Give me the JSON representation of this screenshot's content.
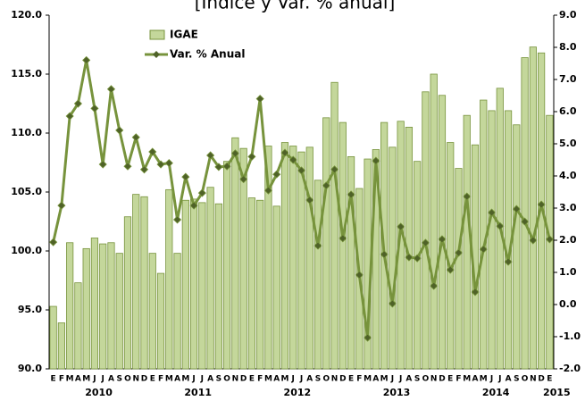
{
  "chart_data": {
    "type": "bar_line",
    "title": "[Índice y Var. % anual]",
    "categories": [
      "E",
      "F",
      "M",
      "A",
      "M",
      "J",
      "J",
      "A",
      "S",
      "O",
      "N",
      "D",
      "E",
      "F",
      "M",
      "A",
      "M",
      "J",
      "J",
      "A",
      "S",
      "O",
      "N",
      "D",
      "E",
      "F",
      "M",
      "A",
      "M",
      "J",
      "J",
      "A",
      "S",
      "O",
      "N",
      "D",
      "E",
      "F",
      "M",
      "A",
      "M",
      "J",
      "J",
      "A",
      "S",
      "O",
      "N",
      "D",
      "E",
      "F",
      "M",
      "A",
      "M",
      "J",
      "J",
      "A",
      "S",
      "O",
      "N",
      "D",
      "E"
    ],
    "years": [
      "2010",
      "2011",
      "2012",
      "2013",
      "2014",
      "2015"
    ],
    "series": [
      {
        "name": "IGAE",
        "type": "bar",
        "color": "#c4d79b",
        "edge_color": "#77933c",
        "axis": "y",
        "values": [
          95.3,
          93.9,
          100.7,
          97.3,
          100.2,
          101.1,
          100.6,
          100.7,
          99.8,
          102.9,
          104.8,
          104.6,
          99.8,
          98.1,
          105.2,
          99.8,
          104.3,
          104.4,
          104.1,
          105.4,
          104.0,
          107.6,
          109.6,
          108.7,
          104.5,
          104.3,
          108.9,
          103.8,
          109.2,
          108.9,
          108.4,
          108.8,
          106.0,
          111.3,
          114.3,
          110.9,
          108.0,
          105.3,
          107.8,
          108.6,
          110.9,
          108.8,
          111.0,
          110.5,
          107.6,
          113.5,
          115.0,
          113.2,
          109.2,
          107.0,
          111.5,
          109.0,
          112.8,
          111.9,
          113.8,
          111.9,
          110.7,
          116.4,
          117.3,
          116.8,
          111.5
        ]
      },
      {
        "name": "Var. % Anual",
        "type": "line",
        "color": "#77933c",
        "marker_color": "#4f6228",
        "axis": "y2",
        "values": [
          1.94,
          3.08,
          5.86,
          6.25,
          7.6,
          6.1,
          4.36,
          6.7,
          5.42,
          4.3,
          5.2,
          4.2,
          4.75,
          4.36,
          4.4,
          2.64,
          3.97,
          3.08,
          3.47,
          4.64,
          4.28,
          4.3,
          4.7,
          3.9,
          4.6,
          6.4,
          3.55,
          4.05,
          4.72,
          4.5,
          4.17,
          3.25,
          1.83,
          3.7,
          4.2,
          2.06,
          3.42,
          0.92,
          -1.03,
          4.47,
          1.56,
          0.03,
          2.42,
          1.47,
          1.44,
          1.92,
          0.58,
          2.03,
          1.08,
          1.61,
          3.36,
          0.39,
          1.72,
          2.86,
          2.44,
          1.33,
          2.97,
          2.58,
          2.0,
          3.11,
          2.03
        ]
      }
    ],
    "ylim": [
      90,
      120
    ],
    "yticks": [
      {
        "value": 90,
        "label": "90.0"
      },
      {
        "value": 95,
        "label": "95.0"
      },
      {
        "value": 100,
        "label": "100.0"
      },
      {
        "value": 105,
        "label": "105.0"
      },
      {
        "value": 110,
        "label": "110.0"
      },
      {
        "value": 115,
        "label": "115.0"
      },
      {
        "value": 120,
        "label": "120.0"
      }
    ],
    "y2lim": [
      -2,
      9
    ],
    "y2ticks": [
      {
        "value": -2,
        "label": "-2.0"
      },
      {
        "value": -1,
        "label": "-1.0"
      },
      {
        "value": 0,
        "label": "0.0"
      },
      {
        "value": 1,
        "label": "1.0"
      },
      {
        "value": 2,
        "label": "2.0"
      },
      {
        "value": 3,
        "label": "3.0"
      },
      {
        "value": 4,
        "label": "4.0"
      },
      {
        "value": 5,
        "label": "5.0"
      },
      {
        "value": 6,
        "label": "6.0"
      },
      {
        "value": 7,
        "label": "7.0"
      },
      {
        "value": 8,
        "label": "8.0"
      },
      {
        "value": 9,
        "label": "9.0"
      }
    ],
    "negative_tick_color": "#ff0000",
    "legend": "top-left",
    "grid": false
  }
}
